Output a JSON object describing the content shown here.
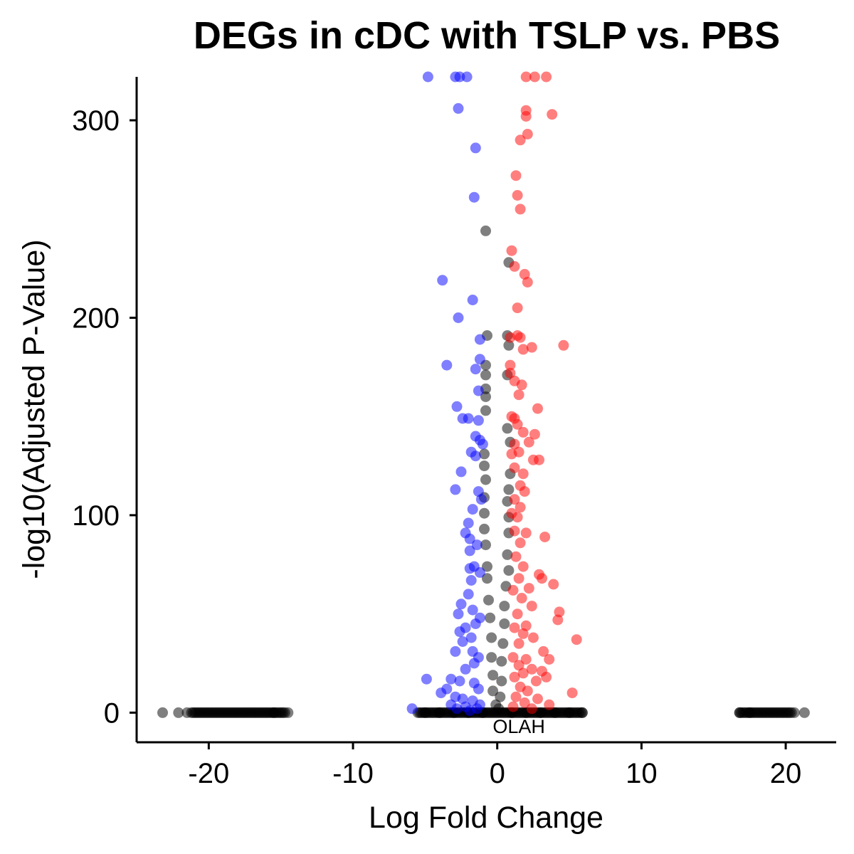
{
  "chart_data": {
    "type": "scatter",
    "title": "DEGs in cDC with TSLP vs. PBS",
    "xlabel": "Log Fold Change",
    "ylabel": "-log10(Adjusted P-Value)",
    "xlim": [
      -25,
      23.5
    ],
    "ylim": [
      -15,
      322
    ],
    "x_ticks": [
      -20,
      -10,
      0,
      10,
      20
    ],
    "x_tick_labels": [
      "-20",
      "-10",
      "0",
      "10",
      "20"
    ],
    "y_ticks": [
      0,
      100,
      200,
      300
    ],
    "y_tick_labels": [
      "0",
      "100",
      "200",
      "300"
    ],
    "grid": false,
    "legend": "none",
    "colors": {
      "down": "#0000ff",
      "up": "#ff0000",
      "ns": "#000000"
    },
    "annotations": [
      {
        "text": "OLAH",
        "x": 1.5,
        "y": -7
      }
    ],
    "series": [
      {
        "group": "down",
        "points": [
          [
            -4.8,
            322
          ],
          [
            -2.9,
            322
          ],
          [
            -2.6,
            322
          ],
          [
            -2.1,
            322
          ],
          [
            -2.7,
            306
          ],
          [
            -1.5,
            286
          ],
          [
            -1.6,
            261
          ],
          [
            -3.8,
            219
          ],
          [
            -1.7,
            209
          ],
          [
            -2.7,
            200
          ],
          [
            -1.2,
            189
          ],
          [
            -3.5,
            176
          ],
          [
            -1.2,
            179
          ],
          [
            -1.5,
            174
          ],
          [
            -1.3,
            163
          ],
          [
            -2.8,
            155
          ],
          [
            -2.4,
            149
          ],
          [
            -2.0,
            149
          ],
          [
            -1.3,
            148
          ],
          [
            -1.5,
            140
          ],
          [
            -1.2,
            138
          ],
          [
            -1.0,
            136
          ],
          [
            -1.8,
            132
          ],
          [
            -1.5,
            130
          ],
          [
            -2.5,
            122
          ],
          [
            -2.9,
            113
          ],
          [
            -1.3,
            112
          ],
          [
            -1.1,
            108
          ],
          [
            -1.7,
            103
          ],
          [
            -2.0,
            96
          ],
          [
            -2.2,
            91
          ],
          [
            -1.9,
            88
          ],
          [
            -1.4,
            85
          ],
          [
            -1.9,
            82
          ],
          [
            -1.6,
            74
          ],
          [
            -1.9,
            73
          ],
          [
            -1.2,
            71
          ],
          [
            -1.8,
            67
          ],
          [
            -2.0,
            60
          ],
          [
            -2.5,
            55
          ],
          [
            -2.7,
            50
          ],
          [
            -1.7,
            52
          ],
          [
            -1.2,
            48
          ],
          [
            -1.5,
            45
          ],
          [
            -2.2,
            43
          ],
          [
            -2.6,
            41
          ],
          [
            -1.8,
            38
          ],
          [
            -2.4,
            36
          ],
          [
            -2.9,
            31
          ],
          [
            -1.7,
            31
          ],
          [
            -1.3,
            28
          ],
          [
            -1.6,
            25
          ],
          [
            -2.2,
            22
          ],
          [
            -4.9,
            17
          ],
          [
            -3.2,
            17
          ],
          [
            -2.6,
            16
          ],
          [
            -1.6,
            15
          ],
          [
            -1.3,
            12
          ],
          [
            -3.5,
            12
          ],
          [
            -3.9,
            10
          ],
          [
            -2.9,
            8
          ],
          [
            -2.4,
            7
          ],
          [
            -1.7,
            6
          ],
          [
            -1.2,
            4
          ],
          [
            -3.2,
            4
          ],
          [
            -2.2,
            3
          ],
          [
            -1.4,
            2
          ],
          [
            -5.9,
            2
          ],
          [
            -2.8,
            2
          ],
          [
            -1.9,
            1
          ]
        ]
      },
      {
        "group": "up",
        "points": [
          [
            2.0,
            322
          ],
          [
            2.6,
            322
          ],
          [
            3.4,
            322
          ],
          [
            2.0,
            305
          ],
          [
            2.0,
            302
          ],
          [
            3.8,
            303
          ],
          [
            2.1,
            293
          ],
          [
            1.6,
            290
          ],
          [
            1.3,
            272
          ],
          [
            1.4,
            262
          ],
          [
            1.6,
            255
          ],
          [
            1.0,
            234
          ],
          [
            1.2,
            226
          ],
          [
            1.9,
            222
          ],
          [
            2.1,
            218
          ],
          [
            1.4,
            205
          ],
          [
            1.4,
            191
          ],
          [
            1.6,
            190
          ],
          [
            0.9,
            190
          ],
          [
            1.8,
            184
          ],
          [
            2.4,
            185
          ],
          [
            4.6,
            186
          ],
          [
            0.9,
            176
          ],
          [
            0.9,
            172
          ],
          [
            1.2,
            168
          ],
          [
            1.7,
            166
          ],
          [
            1.5,
            161
          ],
          [
            2.8,
            154
          ],
          [
            1.0,
            150
          ],
          [
            1.2,
            149
          ],
          [
            1.4,
            146
          ],
          [
            1.8,
            142
          ],
          [
            2.6,
            141
          ],
          [
            1.2,
            136
          ],
          [
            2.2,
            137
          ],
          [
            1.5,
            132
          ],
          [
            1.0,
            131
          ],
          [
            2.5,
            128
          ],
          [
            2.9,
            128
          ],
          [
            1.2,
            124
          ],
          [
            1.8,
            121
          ],
          [
            1.6,
            115
          ],
          [
            1.9,
            112
          ],
          [
            1.2,
            108
          ],
          [
            1.6,
            104
          ],
          [
            1.0,
            101
          ],
          [
            1.4,
            99
          ],
          [
            2.0,
            91
          ],
          [
            3.3,
            89
          ],
          [
            1.2,
            92
          ],
          [
            1.6,
            86
          ],
          [
            1.3,
            79
          ],
          [
            1.8,
            74
          ],
          [
            2.9,
            70
          ],
          [
            1.5,
            68
          ],
          [
            3.1,
            68
          ],
          [
            3.9,
            65
          ],
          [
            2.2,
            63
          ],
          [
            1.1,
            62
          ],
          [
            1.7,
            58
          ],
          [
            2.4,
            54
          ],
          [
            4.3,
            51
          ],
          [
            1.4,
            50
          ],
          [
            4.2,
            47
          ],
          [
            2.0,
            44
          ],
          [
            1.2,
            43
          ],
          [
            1.8,
            40
          ],
          [
            2.5,
            38
          ],
          [
            5.5,
            37
          ],
          [
            1.5,
            35
          ],
          [
            3.2,
            31
          ],
          [
            1.1,
            28
          ],
          [
            2.0,
            27
          ],
          [
            3.6,
            27
          ],
          [
            1.5,
            24
          ],
          [
            2.4,
            22
          ],
          [
            3.1,
            21
          ],
          [
            1.8,
            20
          ],
          [
            1.2,
            18
          ],
          [
            2.7,
            16
          ],
          [
            3.4,
            18
          ],
          [
            1.6,
            13
          ],
          [
            2.1,
            11
          ],
          [
            5.2,
            10
          ],
          [
            1.3,
            8
          ],
          [
            2.8,
            7
          ],
          [
            1.9,
            5
          ],
          [
            3.6,
            4
          ],
          [
            1.1,
            3
          ],
          [
            2.4,
            2
          ]
        ]
      },
      {
        "group": "ns",
        "points": [
          [
            -0.8,
            244
          ],
          [
            0.8,
            228
          ],
          [
            -0.7,
            191
          ],
          [
            0.7,
            191
          ],
          [
            0.8,
            186
          ],
          [
            -0.8,
            176
          ],
          [
            -0.8,
            171
          ],
          [
            0.7,
            171
          ],
          [
            -0.8,
            164
          ],
          [
            -0.8,
            160
          ],
          [
            -0.8,
            153
          ],
          [
            0.7,
            144
          ],
          [
            0.9,
            137
          ],
          [
            -0.9,
            131
          ],
          [
            -0.9,
            125
          ],
          [
            0.9,
            121
          ],
          [
            -0.8,
            118
          ],
          [
            0.8,
            113
          ],
          [
            -0.9,
            109
          ],
          [
            0.7,
            107
          ],
          [
            -0.9,
            101
          ],
          [
            0.8,
            99
          ],
          [
            -0.9,
            93
          ],
          [
            0.8,
            91
          ],
          [
            -0.8,
            85
          ],
          [
            0.7,
            80
          ],
          [
            -0.7,
            74
          ],
          [
            0.8,
            72
          ],
          [
            -0.7,
            68
          ],
          [
            0.6,
            64
          ],
          [
            -0.6,
            57
          ],
          [
            0.5,
            54
          ],
          [
            -0.5,
            48
          ],
          [
            0.5,
            45
          ],
          [
            -0.4,
            38
          ],
          [
            0.4,
            35
          ],
          [
            -0.4,
            28
          ],
          [
            0.3,
            26
          ],
          [
            -0.3,
            19
          ],
          [
            0.3,
            16
          ],
          [
            -0.3,
            11
          ],
          [
            0.2,
            8
          ],
          [
            -0.1,
            4
          ],
          [
            0.1,
            2
          ],
          [
            -5.0,
            0
          ],
          [
            -4.0,
            0
          ],
          [
            -3.0,
            0
          ],
          [
            -2.0,
            0
          ],
          [
            -1.0,
            0
          ],
          [
            1.0,
            0
          ],
          [
            2.0,
            0
          ],
          [
            3.0,
            0
          ],
          [
            4.0,
            0
          ],
          [
            5.0,
            0
          ],
          [
            5.9,
            0
          ],
          [
            -23.2,
            0
          ],
          [
            -22.1,
            0
          ],
          [
            -21.5,
            0
          ],
          [
            -14.5,
            0
          ],
          [
            -15.5,
            0
          ],
          [
            16.8,
            0
          ],
          [
            17.5,
            0
          ],
          [
            20.6,
            0
          ],
          [
            21.3,
            0
          ]
        ]
      }
    ],
    "bands": [
      {
        "group": "ns",
        "x_range": [
          -21.2,
          -14.7
        ],
        "y": 0
      },
      {
        "group": "ns",
        "x_range": [
          16.8,
          20.4
        ],
        "y": 0
      },
      {
        "group": "ns",
        "x_range": [
          -5.5,
          6.0
        ],
        "y": 0
      }
    ]
  }
}
